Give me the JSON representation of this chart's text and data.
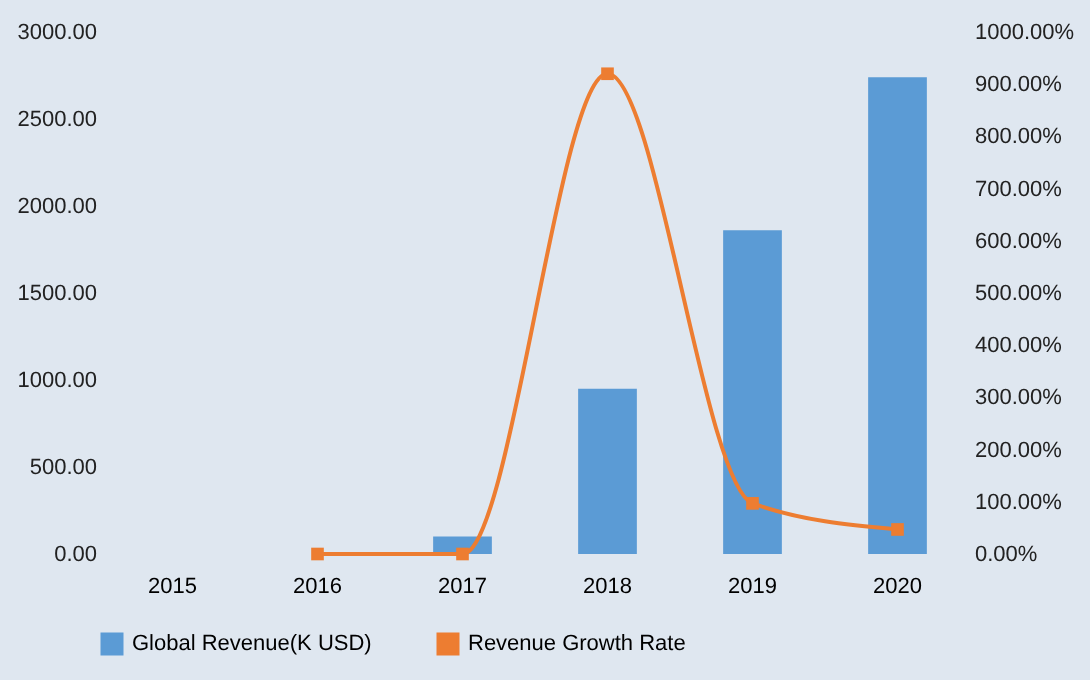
{
  "chart_data": {
    "type": "bar",
    "categories": [
      "2015",
      "2016",
      "2017",
      "2018",
      "2019",
      "2020"
    ],
    "series": [
      {
        "name": "Global Revenue(K USD)",
        "color": "#5b9bd5",
        "values": [
          null,
          null,
          100,
          950,
          1860,
          2740
        ]
      },
      {
        "name": "Revenue Growth Rate",
        "type": "line",
        "axis": "y2",
        "color": "#ed7d31",
        "marker": "square",
        "values": [
          null,
          0,
          0,
          920,
          97,
          47
        ]
      }
    ],
    "ylim": [
      0,
      3000
    ],
    "yticks": [
      {
        "value": 0,
        "label": "0.00"
      },
      {
        "value": 500,
        "label": "500.00"
      },
      {
        "value": 1000,
        "label": "1000.00"
      },
      {
        "value": 1500,
        "label": "1500.00"
      },
      {
        "value": 2000,
        "label": "2000.00"
      },
      {
        "value": 2500,
        "label": "2500.00"
      },
      {
        "value": 3000,
        "label": "3000.00"
      }
    ],
    "y2lim": [
      0,
      1000
    ],
    "y2ticks": [
      {
        "value": 0,
        "label": "0.00%"
      },
      {
        "value": 100,
        "label": "100.00%"
      },
      {
        "value": 200,
        "label": "200.00%"
      },
      {
        "value": 300,
        "label": "300.00%"
      },
      {
        "value": 400,
        "label": "400.00%"
      },
      {
        "value": 500,
        "label": "500.00%"
      },
      {
        "value": 600,
        "label": "600.00%"
      },
      {
        "value": 700,
        "label": "700.00%"
      },
      {
        "value": 800,
        "label": "800.00%"
      },
      {
        "value": 900,
        "label": "900.00%"
      },
      {
        "value": 1000,
        "label": "1000.00%"
      }
    ],
    "legend": "bottom",
    "grid": false
  }
}
